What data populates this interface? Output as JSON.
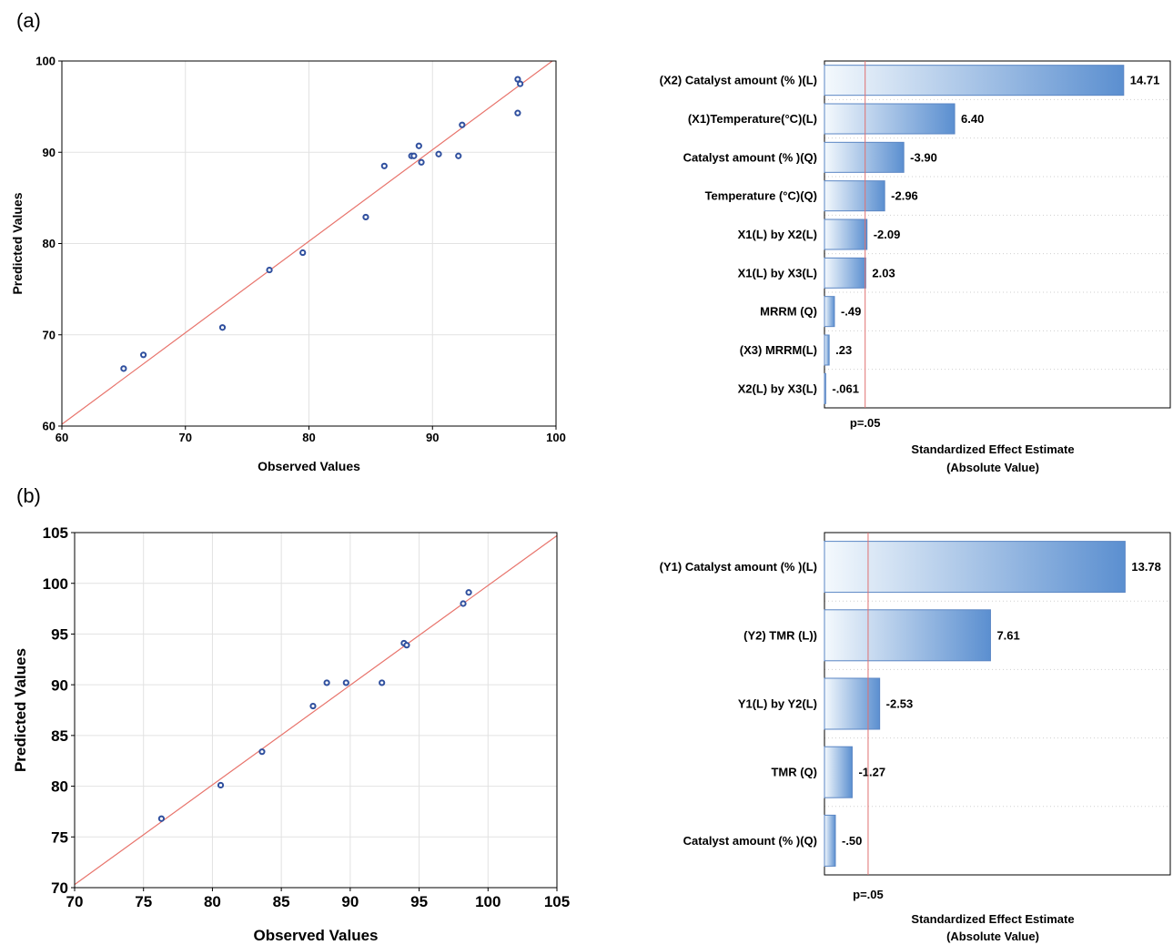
{
  "panels": [
    {
      "label": "(a)"
    },
    {
      "label": "(b)"
    }
  ],
  "colors": {
    "point": "#2f4f9e",
    "fit_line": "#e8746c",
    "pvalue_line": "#e07070",
    "grid": "#e2e2e2",
    "bar_dark": "#5b8fd0",
    "bar_light": "#f4f9fd",
    "bar_border": "#5a86c4"
  },
  "chart_data": [
    {
      "id": "a-scatter",
      "type": "scatter",
      "xlabel": "Observed Values",
      "ylabel": "Predicted Values",
      "xlim": [
        60,
        100
      ],
      "ylim": [
        60,
        100
      ],
      "xticks": [
        "60",
        "70",
        "80",
        "90",
        "100"
      ],
      "yticks": [
        "60",
        "70",
        "80",
        "90",
        "100"
      ],
      "fit_line": [
        [
          60,
          60.2
        ],
        [
          100,
          100.3
        ]
      ],
      "points": [
        [
          65,
          66.3
        ],
        [
          66.6,
          67.8
        ],
        [
          73,
          70.8
        ],
        [
          76.8,
          77.1
        ],
        [
          79.5,
          79.0
        ],
        [
          84.6,
          82.9
        ],
        [
          86.1,
          88.5
        ],
        [
          88.3,
          89.6
        ],
        [
          88.5,
          89.6
        ],
        [
          88.9,
          90.7
        ],
        [
          89.1,
          88.9
        ],
        [
          90.5,
          89.8
        ],
        [
          92.1,
          89.6
        ],
        [
          92.4,
          93.0
        ],
        [
          96.9,
          94.3
        ],
        [
          96.9,
          98.0
        ],
        [
          97.1,
          97.5
        ]
      ],
      "grid": true
    },
    {
      "id": "a-pareto",
      "type": "bar",
      "orientation": "horizontal",
      "xlabel": "Standardized Effect Estimate",
      "xlabel2": "(Absolute Value)",
      "p_label": "p=.05",
      "p_value_line": 2.0,
      "xmax": 17.0,
      "categories": [
        "(X2) Catalyst amount (% )(L)",
        "(X1)Temperature(°C)(L)",
        "Catalyst amount (% )(Q)",
        "Temperature (°C)(Q)",
        "X1(L) by X2(L)",
        "X1(L) by X3(L)",
        "MRRM (Q)",
        "(X3) MRRM(L)",
        "X2(L) by X3(L)"
      ],
      "values": [
        14.71,
        6.4,
        3.9,
        2.96,
        2.09,
        2.03,
        0.49,
        0.23,
        0.061
      ],
      "value_labels": [
        "14.71",
        "6.40",
        "-3.90",
        "-2.96",
        "-2.09",
        "2.03",
        "-.49",
        ".23",
        "-.061"
      ],
      "grid": true
    },
    {
      "id": "b-scatter",
      "type": "scatter",
      "xlabel": "Observed Values",
      "ylabel": "Predicted Values",
      "xlim": [
        70,
        105
      ],
      "ylim": [
        70,
        105
      ],
      "xticks": [
        "70",
        "75",
        "80",
        "85",
        "90",
        "95",
        "100",
        "105"
      ],
      "yticks": [
        "70",
        "75",
        "80",
        "85",
        "90",
        "95",
        "100",
        "105"
      ],
      "fit_line": [
        [
          70,
          70.3
        ],
        [
          105,
          104.7
        ]
      ],
      "points": [
        [
          76.3,
          76.8
        ],
        [
          80.6,
          80.1
        ],
        [
          83.6,
          83.4
        ],
        [
          87.3,
          87.9
        ],
        [
          88.3,
          90.2
        ],
        [
          89.7,
          90.2
        ],
        [
          92.3,
          90.2
        ],
        [
          93.9,
          94.1
        ],
        [
          94.1,
          93.9
        ],
        [
          98.2,
          98.0
        ],
        [
          98.6,
          99.1
        ]
      ],
      "grid": true
    },
    {
      "id": "b-pareto",
      "type": "bar",
      "orientation": "horizontal",
      "xlabel": "Standardized Effect Estimate",
      "xlabel2": "(Absolute Value)",
      "p_label": "p=.05",
      "p_value_line": 2.0,
      "xmax": 15.85,
      "categories": [
        "(Y1) Catalyst amount (% )(L)",
        "(Y2) TMR (L))",
        "Y1(L) by Y2(L)",
        "TMR (Q)",
        "Catalyst amount (% )(Q)"
      ],
      "values": [
        13.78,
        7.61,
        2.53,
        1.27,
        0.5
      ],
      "value_labels": [
        "13.78",
        "7.61",
        "-2.53",
        "-1.27",
        "-.50"
      ],
      "grid": true
    }
  ]
}
